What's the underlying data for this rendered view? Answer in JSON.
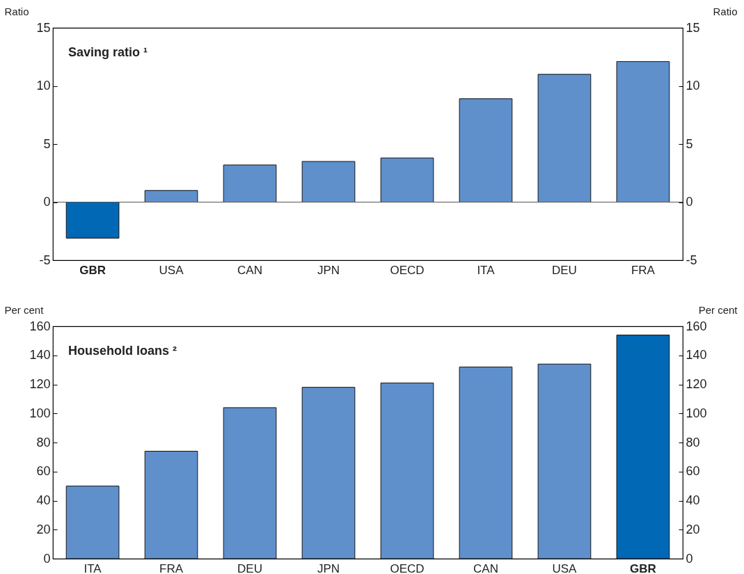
{
  "chart_data": [
    {
      "type": "bar",
      "title": "Saving ratio ¹",
      "ylabel": "Ratio",
      "y2label": "Ratio",
      "categories": [
        "GBR",
        "USA",
        "CAN",
        "JPN",
        "OECD",
        "ITA",
        "DEU",
        "FRA"
      ],
      "values": [
        -3.1,
        1.0,
        3.2,
        3.5,
        3.8,
        8.9,
        11.0,
        12.1
      ],
      "colors": [
        "#0068b5",
        "#5f90cb",
        "#5f90cb",
        "#5f90cb",
        "#5f90cb",
        "#5f90cb",
        "#5f90cb",
        "#5f90cb"
      ],
      "ylim": [
        -5,
        15
      ],
      "yticks": [
        -5,
        0,
        5,
        10,
        15
      ],
      "y2lim": [
        -5,
        15
      ],
      "y2ticks": [
        -5,
        0,
        5,
        10,
        15
      ],
      "ref_lines": [
        {
          "axis": "y",
          "value": 0
        }
      ]
    },
    {
      "type": "bar",
      "title": "Household loans ²",
      "ylabel": "Per cent",
      "y2label": "Per cent",
      "categories": [
        "ITA",
        "FRA",
        "DEU",
        "JPN",
        "OECD",
        "CAN",
        "USA",
        "GBR"
      ],
      "values": [
        50,
        74,
        104,
        118,
        121,
        132,
        134,
        154
      ],
      "colors": [
        "#5f90cb",
        "#5f90cb",
        "#5f90cb",
        "#5f90cb",
        "#5f90cb",
        "#5f90cb",
        "#5f90cb",
        "#0068b5"
      ],
      "ylim": [
        0,
        160
      ],
      "yticks": [
        0,
        20,
        40,
        60,
        80,
        100,
        120,
        140,
        160
      ],
      "y2lim": [
        0,
        160
      ],
      "y2ticks": [
        0,
        20,
        40,
        60,
        80,
        100,
        120,
        140,
        160
      ]
    }
  ]
}
